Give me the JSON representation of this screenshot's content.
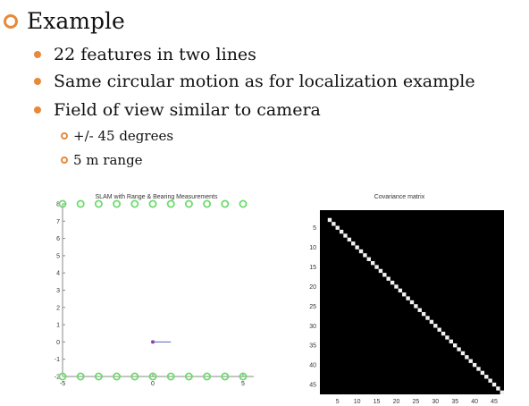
{
  "slide": {
    "heading": "Example",
    "bullets": [
      "22 features in two lines",
      "Same circular motion as for localization example",
      "Field of view similar to camera"
    ],
    "sub_bullets": [
      "+/- 45 degrees",
      "5 m range"
    ]
  },
  "colors": {
    "accent": "#e8893a",
    "landmark": "#6cdc6c",
    "robot": "#8844aa",
    "heading_line": "#5566bb"
  },
  "chart_data": [
    {
      "type": "scatter",
      "title": "SLAM with Range & Bearing Measurements",
      "xlabel": "",
      "ylabel": "",
      "xlim": [
        -5,
        5
      ],
      "ylim": [
        -2,
        8
      ],
      "x_ticks": [
        -5,
        0,
        5
      ],
      "y_ticks": [
        8,
        7,
        6,
        5,
        4,
        3,
        2,
        1,
        0,
        -1,
        -2
      ],
      "series": [
        {
          "marker": "circle",
          "x": [
            -5,
            -4,
            -3,
            -2,
            -1,
            0,
            1,
            2,
            3,
            4,
            5,
            -5,
            -4,
            -3,
            -2,
            -1,
            0,
            1,
            2,
            3,
            4,
            5
          ],
          "y": [
            8,
            8,
            8,
            8,
            8,
            8,
            8,
            8,
            8,
            8,
            8,
            -2,
            -2,
            -2,
            -2,
            -2,
            -2,
            -2,
            -2,
            -2,
            -2,
            -2
          ]
        }
      ],
      "robot": {
        "x": 0,
        "y": 0,
        "heading_end_x": 1
      }
    },
    {
      "type": "heatmap",
      "title": "Covariance matrix",
      "x_ticks": [
        5,
        10,
        15,
        20,
        25,
        30,
        35,
        40,
        45
      ],
      "y_ticks": [
        5,
        10,
        15,
        20,
        25,
        30,
        35,
        40,
        45
      ],
      "range": [
        1,
        47
      ],
      "diagonal_start": 3,
      "diagonal_end": 47
    }
  ]
}
